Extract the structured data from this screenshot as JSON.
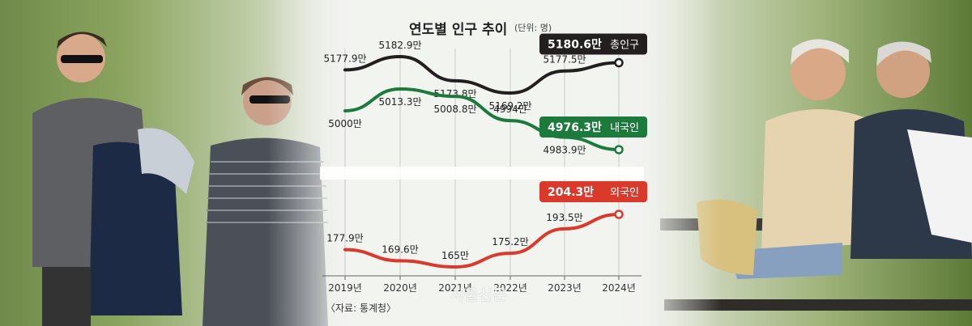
{
  "header": {
    "title": "연도별 인구 추이",
    "unit": "(단위: 명)"
  },
  "footer": {
    "source": "〈자료: 통계청〉",
    "watermark": "서울신문"
  },
  "chart_data": {
    "type": "line",
    "x": [
      "2019년",
      "2020년",
      "2021년",
      "2022년",
      "2023년",
      "2024년"
    ],
    "series": [
      {
        "name": "총인구",
        "color": "#231f1e",
        "values": [
          5177.9,
          5182.9,
          5173.8,
          5169.2,
          5177.5,
          5180.6
        ],
        "labels": [
          "5177.9만",
          "5182.9만",
          "5173.8만",
          "5169.2만",
          "5177.5만",
          "5180.6만"
        ],
        "callout_value": "5180.6만",
        "callout_name": "총인구"
      },
      {
        "name": "내국인",
        "color": "#1b7a3c",
        "values": [
          5000,
          5013.3,
          5008.8,
          4994,
          4983.9,
          4976.3
        ],
        "labels": [
          "5000만",
          "5013.3만",
          "5008.8만",
          "4994만",
          "4983.9만",
          "4976.3만"
        ],
        "callout_value": "4976.3만",
        "callout_name": "내국인"
      },
      {
        "name": "외국인",
        "color": "#d93a2b",
        "values": [
          177.9,
          169.6,
          165,
          175.2,
          193.5,
          204.3
        ],
        "labels": [
          "177.9만",
          "169.6만",
          "165만",
          "175.2만",
          "193.5만",
          "204.3만"
        ],
        "callout_value": "204.3만",
        "callout_name": "외국인"
      }
    ],
    "grid": "vertical",
    "y_axis_broken": true
  }
}
